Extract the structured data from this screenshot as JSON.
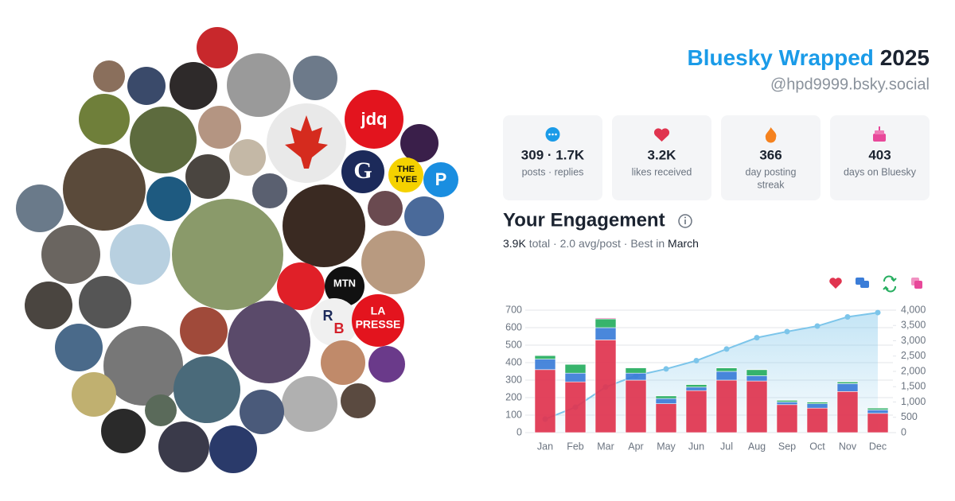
{
  "header": {
    "title": "Bluesky Wrapped",
    "year": "2025",
    "handle": "@hpd9999.bsky.social"
  },
  "stats": [
    {
      "value": "309 · 1.7K",
      "label": "posts · replies"
    },
    {
      "value": "3.2K",
      "label": "likes received"
    },
    {
      "value": "366",
      "label": "day posting",
      "label2": "streak"
    },
    {
      "value": "403",
      "label": "days on Bluesky"
    }
  ],
  "engagement": {
    "title": "Your Engagement",
    "total": "3.9K",
    "total_text": "total ·",
    "avg": "2.0",
    "avg_text": "avg/post · Best in",
    "best": "March"
  },
  "avatar_logos": [
    "jdq",
    "G",
    "THE",
    "TYEE",
    "P",
    "MTN",
    "LA",
    "PRESSE",
    "R",
    "B"
  ],
  "chart_data": {
    "type": "bar",
    "stacked": true,
    "categories": [
      "Jan",
      "Feb",
      "Mar",
      "Apr",
      "May",
      "Jun",
      "Jul",
      "Aug",
      "Sep",
      "Oct",
      "Nov",
      "Dec"
    ],
    "series": [
      {
        "color": "#e0344f",
        "values": [
          360,
          290,
          530,
          300,
          165,
          240,
          300,
          295,
          160,
          140,
          235,
          110
        ]
      },
      {
        "color": "#3b7dd8",
        "values": [
          60,
          50,
          70,
          40,
          30,
          20,
          50,
          30,
          15,
          25,
          45,
          20
        ]
      },
      {
        "color": "#27ae60",
        "values": [
          20,
          50,
          50,
          30,
          15,
          15,
          20,
          35,
          10,
          10,
          10,
          10
        ]
      },
      {
        "color": "#e8489a",
        "values": [
          3,
          2,
          5,
          2,
          1,
          1,
          2,
          2,
          1,
          1,
          2,
          1
        ]
      },
      {
        "type": "line",
        "axis": "y2",
        "color": "#7cc5ea",
        "values": [
          440,
          830,
          1490,
          1860,
          2080,
          2350,
          2730,
          3100,
          3300,
          3480,
          3780,
          3920
        ]
      }
    ],
    "ylim": [
      0,
      700
    ],
    "yticks": [
      0,
      100,
      200,
      300,
      400,
      500,
      600,
      700
    ],
    "y2lim": [
      0,
      4000
    ],
    "y2ticks": [
      0,
      500,
      {
        "value": 1000,
        "label": "1,000"
      },
      {
        "value": 1500,
        "label": "1,500"
      },
      {
        "value": 2000,
        "label": "2,000"
      },
      {
        "value": 2500,
        "label": "2,500"
      },
      {
        "value": 3000,
        "label": "3,000"
      },
      {
        "value": 3500,
        "label": "3,500"
      },
      {
        "value": 4000,
        "label": "4,000"
      }
    ],
    "grid": true
  }
}
